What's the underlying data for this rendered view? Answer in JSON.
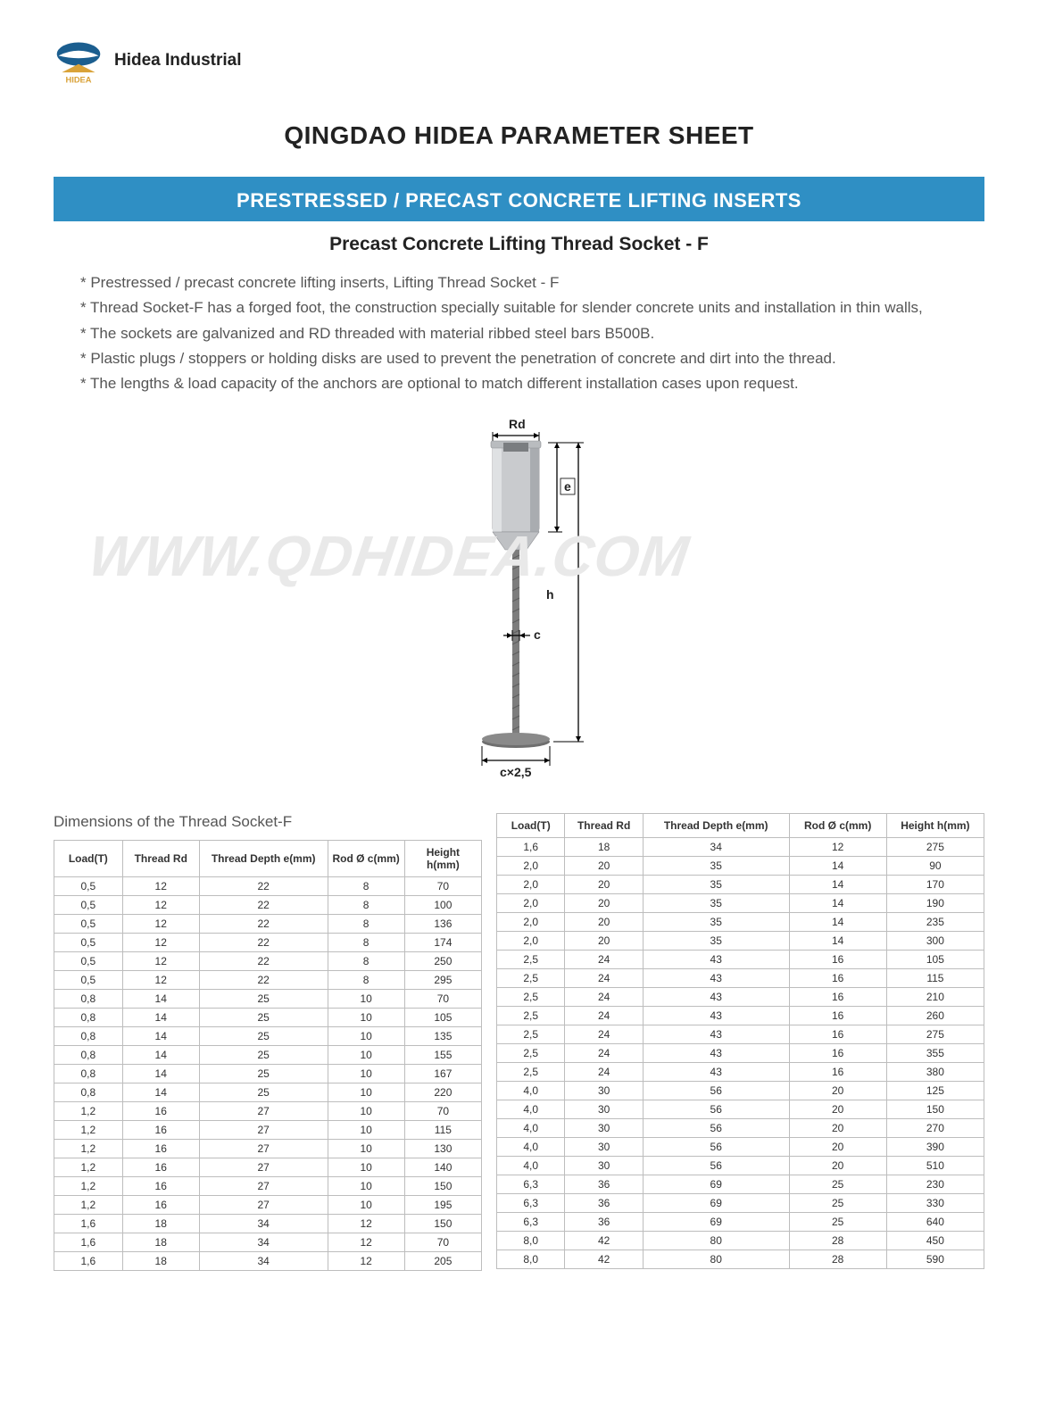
{
  "company": "Hidea Industrial",
  "logo": {
    "top_color": "#1b5e8f",
    "base_color": "#d9a238",
    "text": "HIDEA"
  },
  "page_title": "QINGDAO HIDEA PARAMETER SHEET",
  "banner": "PRESTRESSED / PRECAST CONCRETE LIFTING INSERTS",
  "banner_bg": "#2f8fc4",
  "subtitle": "Precast Concrete Lifting Thread Socket - F",
  "bullets": [
    "Prestressed / precast concrete lifting inserts, Lifting Thread Socket - F",
    "Thread Socket-F has a forged foot, the construction specially suitable for slender concrete units and installation in thin walls,",
    "The sockets are galvanized and RD threaded with material ribbed steel bars B500B.",
    "Plastic plugs / stoppers or holding disks are used to prevent the penetration of concrete and dirt into the thread.",
    "The lengths & load capacity of the anchors are optional to match different installation cases upon request."
  ],
  "watermark": "WWW.QDHIDEA.COM",
  "diagram": {
    "labels": {
      "Rd": "Rd",
      "e": "e",
      "h": "h",
      "c": "c",
      "foot": "c×2,5"
    },
    "socket_color": "#c9cbce",
    "socket_shadow": "#a9acb0",
    "rebar_color": "#7d7d7d",
    "foot_color": "#6f6f6f",
    "arrow_color": "#000000"
  },
  "table_caption": "Dimensions of the Thread Socket-F",
  "columns": [
    "Load(T)",
    "Thread Rd",
    "Thread Depth e(mm)",
    "Rod Ø c(mm)",
    "Height h(mm)"
  ],
  "col_widths_left": [
    "16%",
    "18%",
    "30%",
    "18%",
    "18%"
  ],
  "col_widths_right": [
    "14%",
    "16%",
    "30%",
    "20%",
    "20%"
  ],
  "rows_left": [
    [
      "0,5",
      "12",
      "22",
      "8",
      "70"
    ],
    [
      "0,5",
      "12",
      "22",
      "8",
      "100"
    ],
    [
      "0,5",
      "12",
      "22",
      "8",
      "136"
    ],
    [
      "0,5",
      "12",
      "22",
      "8",
      "174"
    ],
    [
      "0,5",
      "12",
      "22",
      "8",
      "250"
    ],
    [
      "0,5",
      "12",
      "22",
      "8",
      "295"
    ],
    [
      "0,8",
      "14",
      "25",
      "10",
      "70"
    ],
    [
      "0,8",
      "14",
      "25",
      "10",
      "105"
    ],
    [
      "0,8",
      "14",
      "25",
      "10",
      "135"
    ],
    [
      "0,8",
      "14",
      "25",
      "10",
      "155"
    ],
    [
      "0,8",
      "14",
      "25",
      "10",
      "167"
    ],
    [
      "0,8",
      "14",
      "25",
      "10",
      "220"
    ],
    [
      "1,2",
      "16",
      "27",
      "10",
      "70"
    ],
    [
      "1,2",
      "16",
      "27",
      "10",
      "115"
    ],
    [
      "1,2",
      "16",
      "27",
      "10",
      "130"
    ],
    [
      "1,2",
      "16",
      "27",
      "10",
      "140"
    ],
    [
      "1,2",
      "16",
      "27",
      "10",
      "150"
    ],
    [
      "1,2",
      "16",
      "27",
      "10",
      "195"
    ],
    [
      "1,6",
      "18",
      "34",
      "12",
      "150"
    ],
    [
      "1,6",
      "18",
      "34",
      "12",
      "70"
    ],
    [
      "1,6",
      "18",
      "34",
      "12",
      "205"
    ]
  ],
  "rows_right": [
    [
      "1,6",
      "18",
      "34",
      "12",
      "275"
    ],
    [
      "2,0",
      "20",
      "35",
      "14",
      "90"
    ],
    [
      "2,0",
      "20",
      "35",
      "14",
      "170"
    ],
    [
      "2,0",
      "20",
      "35",
      "14",
      "190"
    ],
    [
      "2,0",
      "20",
      "35",
      "14",
      "235"
    ],
    [
      "2,0",
      "20",
      "35",
      "14",
      "300"
    ],
    [
      "2,5",
      "24",
      "43",
      "16",
      "105"
    ],
    [
      "2,5",
      "24",
      "43",
      "16",
      "115"
    ],
    [
      "2,5",
      "24",
      "43",
      "16",
      "210"
    ],
    [
      "2,5",
      "24",
      "43",
      "16",
      "260"
    ],
    [
      "2,5",
      "24",
      "43",
      "16",
      "275"
    ],
    [
      "2,5",
      "24",
      "43",
      "16",
      "355"
    ],
    [
      "2,5",
      "24",
      "43",
      "16",
      "380"
    ],
    [
      "4,0",
      "30",
      "56",
      "20",
      "125"
    ],
    [
      "4,0",
      "30",
      "56",
      "20",
      "150"
    ],
    [
      "4,0",
      "30",
      "56",
      "20",
      "270"
    ],
    [
      "4,0",
      "30",
      "56",
      "20",
      "390"
    ],
    [
      "4,0",
      "30",
      "56",
      "20",
      "510"
    ],
    [
      "6,3",
      "36",
      "69",
      "25",
      "230"
    ],
    [
      "6,3",
      "36",
      "69",
      "25",
      "330"
    ],
    [
      "6,3",
      "36",
      "69",
      "25",
      "640"
    ],
    [
      "8,0",
      "42",
      "80",
      "28",
      "450"
    ],
    [
      "8,0",
      "42",
      "80",
      "28",
      "590"
    ]
  ],
  "table_border_color": "#bdbdbd",
  "text_muted": "#555555",
  "body_font_size": 17
}
